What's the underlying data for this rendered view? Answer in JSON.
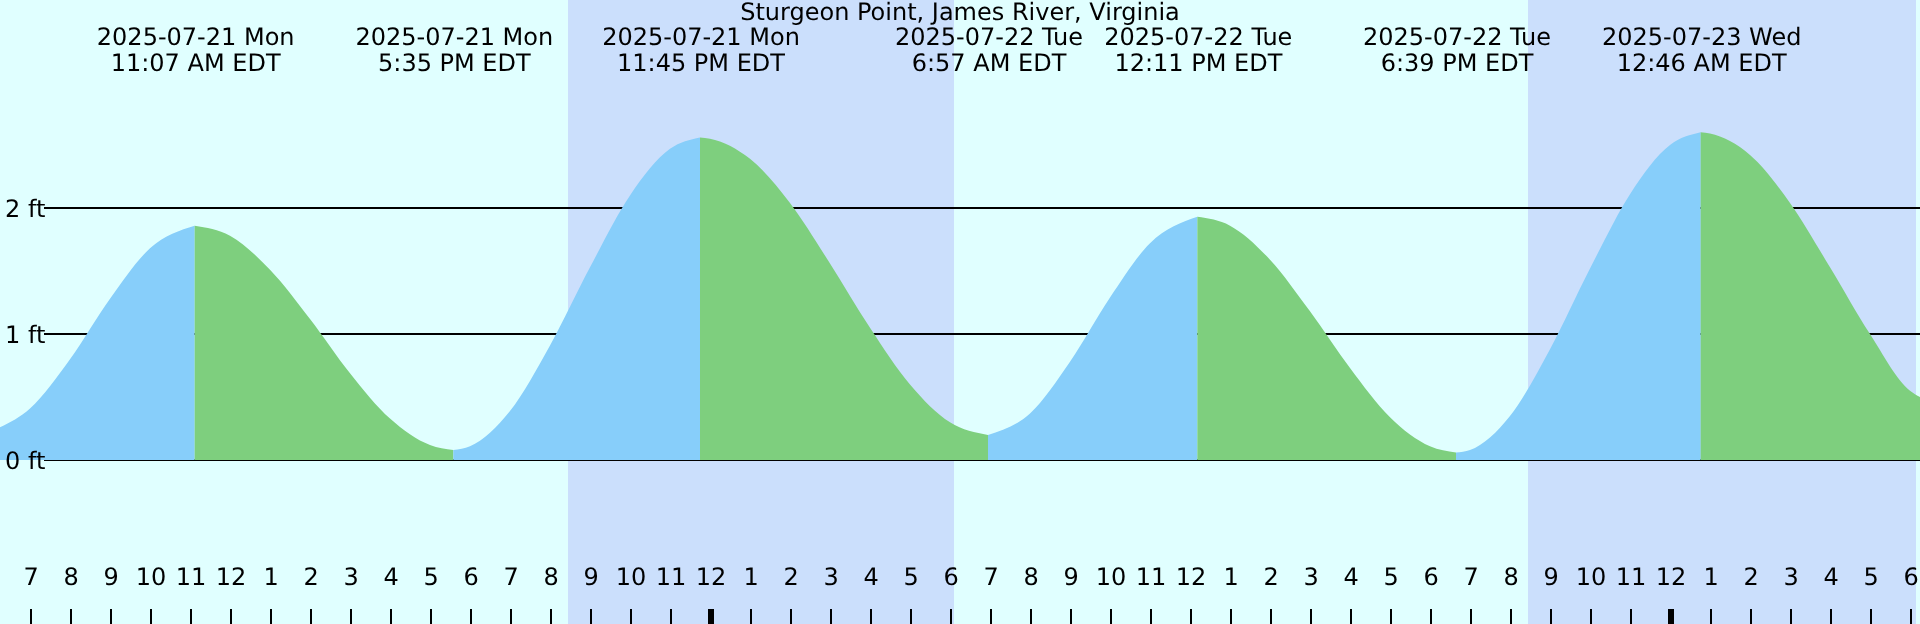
{
  "chart_data": {
    "type": "area",
    "title": "Sturgeon Point, James River, Virginia",
    "xlim": [
      "2025-07-21T06:15",
      "2025-07-23T06:15"
    ],
    "xticks": [
      {
        "value": "2025-07-21T07:00",
        "label": "7"
      },
      {
        "value": "2025-07-21T08:00",
        "label": "8"
      },
      {
        "value": "2025-07-21T09:00",
        "label": "9"
      },
      {
        "value": "2025-07-21T10:00",
        "label": "10"
      },
      {
        "value": "2025-07-21T11:00",
        "label": "11"
      },
      {
        "value": "2025-07-21T12:00",
        "label": "12"
      },
      {
        "value": "2025-07-21T13:00",
        "label": "1"
      },
      {
        "value": "2025-07-21T14:00",
        "label": "2"
      },
      {
        "value": "2025-07-21T15:00",
        "label": "3"
      },
      {
        "value": "2025-07-21T16:00",
        "label": "4"
      },
      {
        "value": "2025-07-21T17:00",
        "label": "5"
      },
      {
        "value": "2025-07-21T18:00",
        "label": "6"
      },
      {
        "value": "2025-07-21T19:00",
        "label": "7"
      },
      {
        "value": "2025-07-21T20:00",
        "label": "8"
      },
      {
        "value": "2025-07-21T21:00",
        "label": "9"
      },
      {
        "value": "2025-07-21T22:00",
        "label": "10"
      },
      {
        "value": "2025-07-21T23:00",
        "label": "11"
      },
      {
        "value": "2025-07-22T00:00",
        "label": "12"
      },
      {
        "value": "2025-07-22T01:00",
        "label": "1"
      },
      {
        "value": "2025-07-22T02:00",
        "label": "2"
      },
      {
        "value": "2025-07-22T03:00",
        "label": "3"
      },
      {
        "value": "2025-07-22T04:00",
        "label": "4"
      },
      {
        "value": "2025-07-22T05:00",
        "label": "5"
      },
      {
        "value": "2025-07-22T06:00",
        "label": "6"
      },
      {
        "value": "2025-07-22T07:00",
        "label": "7"
      },
      {
        "value": "2025-07-22T08:00",
        "label": "8"
      },
      {
        "value": "2025-07-22T09:00",
        "label": "9"
      },
      {
        "value": "2025-07-22T10:00",
        "label": "10"
      },
      {
        "value": "2025-07-22T11:00",
        "label": "11"
      },
      {
        "value": "2025-07-22T12:00",
        "label": "12"
      },
      {
        "value": "2025-07-22T13:00",
        "label": "1"
      },
      {
        "value": "2025-07-22T14:00",
        "label": "2"
      },
      {
        "value": "2025-07-22T15:00",
        "label": "3"
      },
      {
        "value": "2025-07-22T16:00",
        "label": "4"
      },
      {
        "value": "2025-07-22T17:00",
        "label": "5"
      },
      {
        "value": "2025-07-22T18:00",
        "label": "6"
      },
      {
        "value": "2025-07-22T19:00",
        "label": "7"
      },
      {
        "value": "2025-07-22T20:00",
        "label": "8"
      },
      {
        "value": "2025-07-22T21:00",
        "label": "9"
      },
      {
        "value": "2025-07-22T22:00",
        "label": "10"
      },
      {
        "value": "2025-07-22T23:00",
        "label": "11"
      },
      {
        "value": "2025-07-23T00:00",
        "label": "12"
      },
      {
        "value": "2025-07-23T01:00",
        "label": "1"
      },
      {
        "value": "2025-07-23T02:00",
        "label": "2"
      },
      {
        "value": "2025-07-23T03:00",
        "label": "3"
      },
      {
        "value": "2025-07-23T04:00",
        "label": "4"
      },
      {
        "value": "2025-07-23T05:00",
        "label": "5"
      },
      {
        "value": "2025-07-23T06:00",
        "label": "6"
      }
    ],
    "x2lim": [
      "2025-07-21T06:15",
      "2025-07-23T06:15"
    ],
    "x2ticks": [
      {
        "value": "2025-07-21T11:07",
        "label": "2025-07-21 Mon\n11:07 AM EDT"
      },
      {
        "value": "2025-07-21T17:35",
        "label": "2025-07-21 Mon\n5:35 PM EDT"
      },
      {
        "value": "2025-07-21T23:45",
        "label": "2025-07-21 Mon\n11:45 PM EDT"
      },
      {
        "value": "2025-07-22T06:57",
        "label": "2025-07-22 Tue\n6:57 AM EDT"
      },
      {
        "value": "2025-07-22T12:11",
        "label": "2025-07-22 Tue\n12:11 PM EDT"
      },
      {
        "value": "2025-07-22T18:39",
        "label": "2025-07-22 Tue\n6:39 PM EDT"
      },
      {
        "value": "2025-07-23T00:46",
        "label": "2025-07-23 Wed\n12:46 AM EDT"
      }
    ],
    "ylim": [
      -1.3,
      3.65
    ],
    "yticks": [
      {
        "value": 0,
        "label": "0 ft"
      },
      {
        "value": 1,
        "label": "1 ft"
      },
      {
        "value": 2,
        "label": "2 ft"
      }
    ],
    "grid": "y",
    "bands": [
      {
        "axis": "x",
        "from": "2025-07-21T06:15",
        "to": "2025-07-21T20:27",
        "color": "#e0ffff"
      },
      {
        "axis": "x",
        "from": "2025-07-21T20:27",
        "to": "2025-07-22T06:06",
        "color": "#cbdffc"
      },
      {
        "axis": "x",
        "from": "2025-07-22T06:06",
        "to": "2025-07-22T20:27",
        "color": "#e0ffff"
      },
      {
        "axis": "x",
        "from": "2025-07-22T20:27",
        "to": "2025-07-23T06:09",
        "color": "#cbdffc"
      },
      {
        "axis": "x",
        "from": "2025-07-23T06:09",
        "to": "2025-07-23T06:15",
        "color": "#e0ffff"
      }
    ],
    "series": [
      {
        "color": "#87cefa",
        "x": [
          "2025-07-21T06:15",
          "2025-07-21T07:00",
          "2025-07-21T08:00",
          "2025-07-21T09:00",
          "2025-07-21T10:00",
          "2025-07-21T11:07"
        ],
        "values": [
          0.26,
          0.41,
          0.8,
          1.28,
          1.68,
          1.86
        ]
      },
      {
        "color": "#7ecf7e",
        "x": [
          "2025-07-21T11:07",
          "2025-07-21T12:00",
          "2025-07-21T13:00",
          "2025-07-21T14:00",
          "2025-07-21T15:00",
          "2025-07-21T16:00",
          "2025-07-21T17:00",
          "2025-07-21T17:35"
        ],
        "values": [
          1.86,
          1.78,
          1.51,
          1.12,
          0.69,
          0.33,
          0.12,
          0.08
        ]
      },
      {
        "color": "#87cefa",
        "x": [
          "2025-07-21T17:35",
          "2025-07-21T18:00",
          "2025-07-21T19:00",
          "2025-07-21T20:00",
          "2025-07-21T21:00",
          "2025-07-21T22:00",
          "2025-07-21T23:00",
          "2025-07-21T23:45"
        ],
        "values": [
          0.08,
          0.11,
          0.39,
          0.91,
          1.53,
          2.1,
          2.47,
          2.56
        ]
      },
      {
        "color": "#7ecf7e",
        "x": [
          "2025-07-21T23:45",
          "2025-07-22T00:00",
          "2025-07-22T01:00",
          "2025-07-22T02:00",
          "2025-07-22T03:00",
          "2025-07-22T04:00",
          "2025-07-22T05:00",
          "2025-07-22T06:00",
          "2025-07-22T06:57"
        ],
        "values": [
          2.56,
          2.55,
          2.39,
          2.04,
          1.56,
          1.05,
          0.6,
          0.3,
          0.2
        ]
      },
      {
        "color": "#87cefa",
        "x": [
          "2025-07-22T06:57",
          "2025-07-22T08:00",
          "2025-07-22T09:00",
          "2025-07-22T10:00",
          "2025-07-22T11:00",
          "2025-07-22T12:11"
        ],
        "values": [
          0.2,
          0.37,
          0.78,
          1.29,
          1.72,
          1.93
        ]
      },
      {
        "color": "#7ecf7e",
        "x": [
          "2025-07-22T12:11",
          "2025-07-22T13:00",
          "2025-07-22T14:00",
          "2025-07-22T15:00",
          "2025-07-22T16:00",
          "2025-07-22T17:00",
          "2025-07-22T18:00",
          "2025-07-22T18:39"
        ],
        "values": [
          1.93,
          1.86,
          1.59,
          1.18,
          0.73,
          0.34,
          0.11,
          0.06
        ]
      },
      {
        "color": "#87cefa",
        "x": [
          "2025-07-22T18:39",
          "2025-07-22T19:00",
          "2025-07-22T20:00",
          "2025-07-22T21:00",
          "2025-07-22T22:00",
          "2025-07-22T23:00",
          "2025-07-23T00:00",
          "2025-07-23T00:46"
        ],
        "values": [
          0.06,
          0.08,
          0.35,
          0.88,
          1.52,
          2.11,
          2.5,
          2.6
        ]
      },
      {
        "color": "#7ecf7e",
        "x": [
          "2025-07-23T00:46",
          "2025-07-23T01:00",
          "2025-07-23T02:00",
          "2025-07-23T03:00",
          "2025-07-23T04:00",
          "2025-07-23T05:00",
          "2025-07-23T06:00",
          "2025-07-23T06:15"
        ],
        "values": [
          2.6,
          2.59,
          2.42,
          2.04,
          1.53,
          1.0,
          0.55,
          0.5
        ]
      }
    ]
  }
}
